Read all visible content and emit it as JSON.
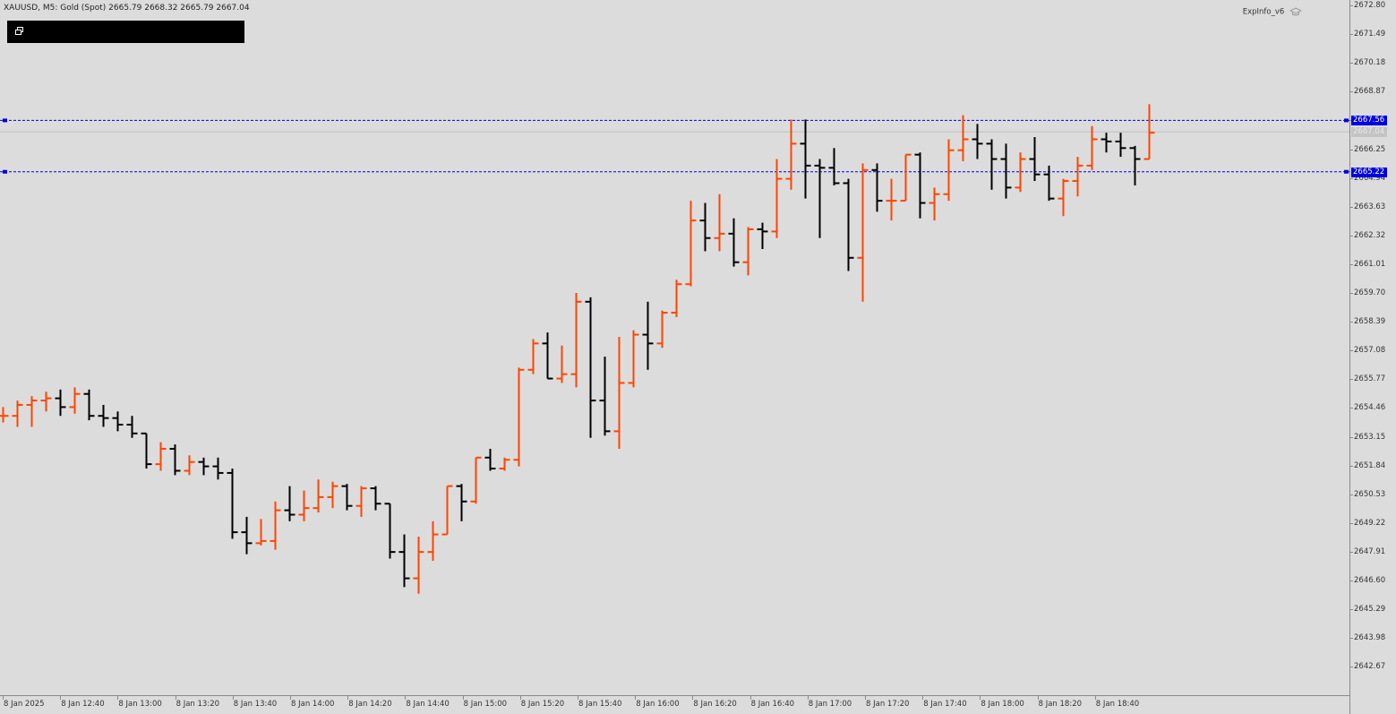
{
  "header": {
    "symbol_line": "XAUUSD, M5:  Gold (Spot)  2665.79 2668.32 2665.79 2667.04",
    "indicator_label": "ExpInfo_v6"
  },
  "colors": {
    "background": "#dcdcdc",
    "bull_bar": "#ff4500",
    "bear_bar": "#000000",
    "hline": "#0000e0",
    "bid_line": "#c0c0c0"
  },
  "icons": {
    "panel_icon": "restore-window-icon",
    "indicator_icon": "graduation-cap-icon"
  },
  "chart_data": {
    "type": "ohlc",
    "symbol": "XAUUSD",
    "timeframe": "M5",
    "ylim": [
      2641.5,
      2672.8
    ],
    "y_ticks": [
      "2672.80",
      "2671.49",
      "2670.18",
      "2668.87",
      "2667.56",
      "2666.25",
      "2664.94",
      "2663.63",
      "2662.32",
      "2661.01",
      "2659.70",
      "2658.39",
      "2657.08",
      "2655.77",
      "2654.46",
      "2653.15",
      "2651.84",
      "2650.53",
      "2649.22",
      "2647.91",
      "2646.60",
      "2645.29",
      "2643.98",
      "2642.67"
    ],
    "x_ticks": [
      "8 Jan 2025",
      "8 Jan 12:40",
      "8 Jan 13:00",
      "8 Jan 13:20",
      "8 Jan 13:40",
      "8 Jan 14:00",
      "8 Jan 14:20",
      "8 Jan 14:40",
      "8 Jan 15:00",
      "8 Jan 15:20",
      "8 Jan 15:40",
      "8 Jan 16:00",
      "8 Jan 16:20",
      "8 Jan 16:40",
      "8 Jan 17:00",
      "8 Jan 17:20",
      "8 Jan 17:40",
      "8 Jan 18:00",
      "8 Jan 18:20",
      "8 Jan 18:40"
    ],
    "bar_interval_minutes": 5,
    "horizontal_lines": [
      {
        "label": "2667.56",
        "value": 2667.56,
        "style": "dashed"
      },
      {
        "label": "2665.22",
        "value": 2665.22,
        "style": "dashed"
      }
    ],
    "bid_line": {
      "label": "2667.04",
      "value": 2667.04
    },
    "bars": [
      [
        2654.1,
        2654.5,
        2653.8,
        2654.1
      ],
      [
        2654.1,
        2654.8,
        2653.6,
        2654.6
      ],
      [
        2654.6,
        2655.0,
        2653.6,
        2654.8
      ],
      [
        2654.8,
        2655.2,
        2654.3,
        2654.9
      ],
      [
        2654.9,
        2655.3,
        2654.1,
        2654.5
      ],
      [
        2654.5,
        2655.4,
        2654.2,
        2655.1
      ],
      [
        2655.1,
        2655.3,
        2653.9,
        2654.1
      ],
      [
        2654.1,
        2654.6,
        2653.6,
        2654.0
      ],
      [
        2654.0,
        2654.3,
        2653.4,
        2653.7
      ],
      [
        2653.7,
        2654.1,
        2653.1,
        2653.3
      ],
      [
        2653.3,
        2653.3,
        2651.7,
        2651.9
      ],
      [
        2651.9,
        2652.9,
        2651.6,
        2652.6
      ],
      [
        2652.6,
        2652.8,
        2651.4,
        2651.6
      ],
      [
        2651.6,
        2652.3,
        2651.4,
        2652.0
      ],
      [
        2652.0,
        2652.2,
        2651.4,
        2651.8
      ],
      [
        2651.8,
        2652.2,
        2651.2,
        2651.5
      ],
      [
        2651.5,
        2651.7,
        2648.5,
        2648.8
      ],
      [
        2648.8,
        2649.5,
        2647.8,
        2648.3
      ],
      [
        2648.3,
        2649.4,
        2648.2,
        2648.4
      ],
      [
        2648.4,
        2650.2,
        2648.0,
        2649.8
      ],
      [
        2649.8,
        2650.9,
        2649.3,
        2649.6
      ],
      [
        2649.6,
        2650.7,
        2649.3,
        2649.9
      ],
      [
        2649.9,
        2651.2,
        2649.7,
        2650.4
      ],
      [
        2650.4,
        2651.1,
        2649.9,
        2650.9
      ],
      [
        2650.9,
        2651.0,
        2649.8,
        2650.0
      ],
      [
        2650.0,
        2650.9,
        2649.5,
        2650.8
      ],
      [
        2650.8,
        2650.9,
        2649.8,
        2650.1
      ],
      [
        2650.1,
        2650.1,
        2647.6,
        2647.9
      ],
      [
        2647.9,
        2648.7,
        2646.3,
        2646.7
      ],
      [
        2646.7,
        2648.6,
        2646.0,
        2647.9
      ],
      [
        2647.9,
        2649.3,
        2647.5,
        2648.7
      ],
      [
        2648.7,
        2650.9,
        2648.7,
        2650.9
      ],
      [
        2650.9,
        2651.0,
        2649.3,
        2650.2
      ],
      [
        2650.2,
        2652.2,
        2650.1,
        2652.2
      ],
      [
        2652.2,
        2652.6,
        2651.6,
        2651.7
      ],
      [
        2651.7,
        2652.2,
        2651.6,
        2652.1
      ],
      [
        2652.1,
        2656.3,
        2651.8,
        2656.2
      ],
      [
        2656.2,
        2657.6,
        2656.0,
        2657.4
      ],
      [
        2657.4,
        2657.9,
        2655.8,
        2655.8
      ],
      [
        2655.8,
        2657.3,
        2655.6,
        2656.0
      ],
      [
        2656.0,
        2659.7,
        2655.4,
        2659.3
      ],
      [
        2659.3,
        2659.5,
        2653.1,
        2654.8
      ],
      [
        2654.8,
        2656.8,
        2653.2,
        2653.4
      ],
      [
        2653.4,
        2657.7,
        2652.6,
        2655.6
      ],
      [
        2655.6,
        2658.0,
        2655.4,
        2657.8
      ],
      [
        2657.8,
        2659.3,
        2656.2,
        2657.4
      ],
      [
        2657.4,
        2658.9,
        2657.2,
        2658.8
      ],
      [
        2658.8,
        2660.3,
        2658.6,
        2660.1
      ],
      [
        2660.1,
        2663.9,
        2660.0,
        2663.0
      ],
      [
        2663.0,
        2663.8,
        2661.6,
        2662.2
      ],
      [
        2662.2,
        2664.2,
        2661.6,
        2662.4
      ],
      [
        2662.4,
        2663.1,
        2660.9,
        2661.1
      ],
      [
        2661.1,
        2662.7,
        2660.5,
        2662.6
      ],
      [
        2662.6,
        2662.9,
        2661.7,
        2662.5
      ],
      [
        2662.5,
        2665.8,
        2662.2,
        2664.9
      ],
      [
        2664.9,
        2667.6,
        2664.4,
        2666.5
      ],
      [
        2666.5,
        2667.6,
        2664.0,
        2665.5
      ],
      [
        2665.5,
        2665.8,
        2662.2,
        2665.4
      ],
      [
        2665.4,
        2666.3,
        2664.6,
        2664.7
      ],
      [
        2664.7,
        2664.9,
        2660.7,
        2661.3
      ],
      [
        2661.3,
        2665.6,
        2659.3,
        2665.3
      ],
      [
        2665.3,
        2665.6,
        2663.4,
        2663.9
      ],
      [
        2663.9,
        2664.9,
        2663.0,
        2663.9
      ],
      [
        2663.9,
        2666.0,
        2663.9,
        2666.0
      ],
      [
        2666.0,
        2666.1,
        2663.1,
        2663.8
      ],
      [
        2663.8,
        2664.5,
        2663.0,
        2664.2
      ],
      [
        2664.2,
        2666.7,
        2663.9,
        2666.2
      ],
      [
        2666.2,
        2667.8,
        2665.7,
        2666.7
      ],
      [
        2666.7,
        2667.4,
        2665.8,
        2666.5
      ],
      [
        2666.5,
        2666.7,
        2664.4,
        2665.8
      ],
      [
        2665.8,
        2666.5,
        2664.0,
        2664.5
      ],
      [
        2664.5,
        2666.1,
        2664.3,
        2665.8
      ],
      [
        2665.8,
        2666.8,
        2664.8,
        2665.1
      ],
      [
        2665.1,
        2665.5,
        2663.9,
        2664.0
      ],
      [
        2664.0,
        2664.9,
        2663.2,
        2664.8
      ],
      [
        2664.8,
        2665.9,
        2664.1,
        2665.5
      ],
      [
        2665.5,
        2667.3,
        2665.3,
        2666.7
      ],
      [
        2666.7,
        2667.0,
        2666.1,
        2666.6
      ],
      [
        2666.6,
        2667.0,
        2665.9,
        2666.3
      ],
      [
        2666.3,
        2666.4,
        2664.6,
        2665.8
      ],
      [
        2665.8,
        2668.3,
        2665.8,
        2667.0
      ]
    ]
  }
}
